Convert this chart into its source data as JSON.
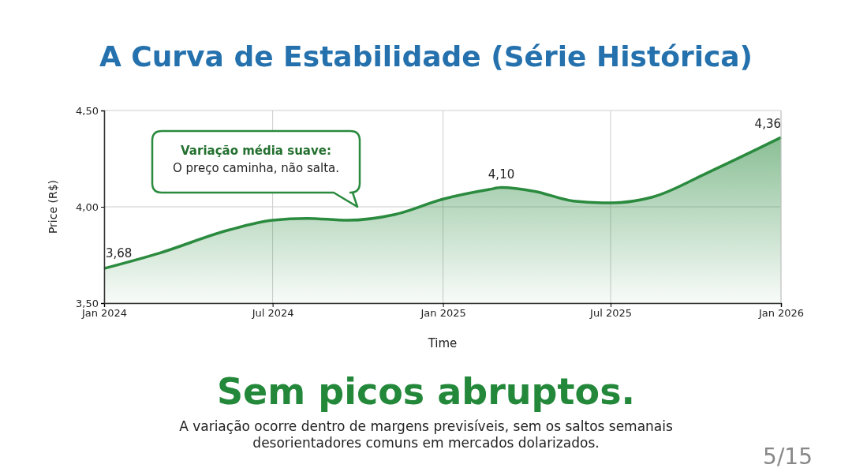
{
  "chart_data": {
    "type": "area",
    "title": "A Curva de Estabilidade (Série Histórica)",
    "subtitle": "Sem picos abruptos.",
    "xlabel": "Time",
    "ylabel": "Price (R$)",
    "x": [
      "2024-01-01",
      "2024-03-01",
      "2024-05-15",
      "2024-07-01",
      "2024-08-07",
      "2024-09-20",
      "2024-11-10",
      "2025-01-01",
      "2025-02-20",
      "2025-03-05",
      "2025-04-10",
      "2025-05-22",
      "2025-07-01",
      "2025-08-15",
      "2025-10-15",
      "2026-01-01"
    ],
    "series": [
      {
        "color": "#2a8a3e",
        "values": [
          3.68,
          3.76,
          3.88,
          3.93,
          3.94,
          3.93,
          3.96,
          4.04,
          4.09,
          4.1,
          4.08,
          4.03,
          4.02,
          4.05,
          4.18,
          4.36
        ],
        "value_labels": [
          "3,68",
          null,
          null,
          null,
          null,
          null,
          null,
          null,
          null,
          "4,10",
          null,
          null,
          null,
          null,
          null,
          "4,36"
        ]
      }
    ],
    "xlim": [
      "2024-01-01",
      "2026-01-01"
    ],
    "xticks": [
      {
        "value": "2024-01-01",
        "label": "Jan 2024"
      },
      {
        "value": "2024-07-01",
        "label": "Jul 2024"
      },
      {
        "value": "2025-01-01",
        "label": "Jan 2025"
      },
      {
        "value": "2025-07-01",
        "label": "Jul 2025"
      },
      {
        "value": "2026-01-01",
        "label": "Jan 2026"
      }
    ],
    "ylim": [
      3.5,
      4.5
    ],
    "yticks": [
      {
        "value": 3.5,
        "label": "3,50"
      },
      {
        "value": 4.0,
        "label": "4,00"
      },
      {
        "value": 4.5,
        "label": "4,50"
      }
    ],
    "grid": true,
    "marker": "none",
    "line_style": "solid",
    "annotations": [
      "Variação média suave:\nO preço caminha, não salta.",
      "A variação ocorre dentro de margens previsíveis, sem os saltos semanais\ndesorientadores comuns em mercados dolarizados.",
      "5/15"
    ]
  }
}
